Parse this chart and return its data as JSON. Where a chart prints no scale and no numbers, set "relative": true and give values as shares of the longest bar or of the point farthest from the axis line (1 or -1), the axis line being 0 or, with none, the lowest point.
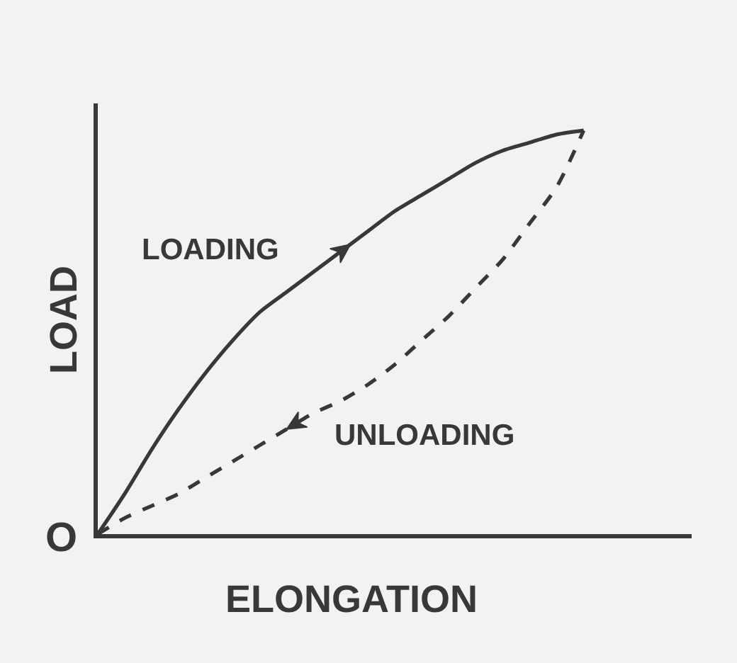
{
  "chart_data": {
    "type": "line",
    "relative": true,
    "xlabel": "ELONGATION",
    "ylabel": "LOAD",
    "annotations": [
      "O"
    ],
    "categories": [
      null,
      null,
      null,
      null,
      null,
      null,
      null,
      null,
      null,
      null,
      null,
      null,
      null,
      null,
      null,
      null,
      null,
      null,
      null,
      null,
      null,
      null,
      null
    ],
    "series": [
      {
        "name": "LOADING",
        "color": "#383838",
        "line_style": "solid",
        "values": [
          0,
          0.1,
          0.21,
          0.31,
          0.4,
          0.48,
          0.55,
          0.6,
          0.65,
          0.7,
          0.75,
          0.8,
          0.84,
          0.88,
          0.92,
          0.95,
          0.97,
          0.99,
          1,
          null,
          null,
          null,
          null
        ]
      },
      {
        "name": "UNLOADING",
        "color": "#383838",
        "line_style": "dashed",
        "values": [
          0,
          0.04,
          0.07,
          0.1,
          0.14,
          0.18,
          0.22,
          0.26,
          0.3,
          0.33,
          0.37,
          0.42,
          0.48,
          0.54,
          0.61,
          0.68,
          0.77,
          0.86,
          1,
          null,
          null,
          null,
          null
        ]
      }
    ]
  }
}
